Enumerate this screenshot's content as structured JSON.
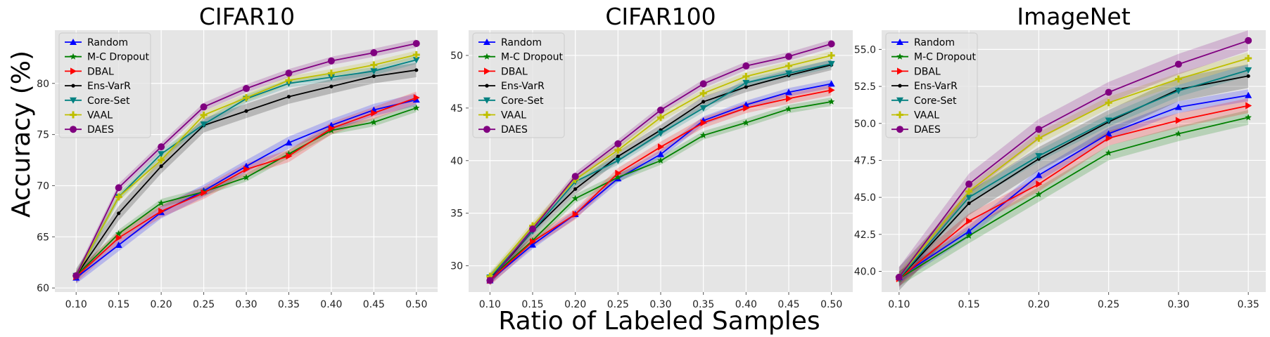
{
  "figure": {
    "ylabel": "Accuracy (%)",
    "xlabel": "Ratio of Labeled Samples"
  },
  "legend_entries": [
    {
      "name": "Random",
      "color": "#0000ff",
      "marker": "triangle-up"
    },
    {
      "name": "M-C Dropout",
      "color": "#008000",
      "marker": "star"
    },
    {
      "name": "DBAL",
      "color": "#ff0000",
      "marker": "triangle-right"
    },
    {
      "name": "Ens-VarR",
      "color": "#000000",
      "marker": "dot"
    },
    {
      "name": "Core-Set",
      "color": "#008080",
      "marker": "triangle-down"
    },
    {
      "name": "VAAL",
      "color": "#bfbf00",
      "marker": "plus"
    },
    {
      "name": "DAES",
      "color": "#800080",
      "marker": "circle"
    }
  ],
  "chart_data": [
    {
      "type": "line",
      "title": "CIFAR10",
      "x": [
        0.1,
        0.15,
        0.2,
        0.25,
        0.3,
        0.35,
        0.4,
        0.45,
        0.5
      ],
      "x_tick_labels": [
        "0.10",
        "0.15",
        "0.20",
        "0.25",
        "0.30",
        "0.35",
        "0.40",
        "0.45",
        "0.50"
      ],
      "xlim": [
        0.075,
        0.525
      ],
      "ylim": [
        59.6,
        85.2
      ],
      "y_ticks": [
        60,
        65,
        70,
        75,
        80
      ],
      "y_tick_labels": [
        "60",
        "65",
        "70",
        "75",
        "80"
      ],
      "grid": true,
      "legend_position": "top-left",
      "series": [
        {
          "name": "Random",
          "values": [
            61.0,
            64.2,
            67.4,
            69.5,
            71.9,
            74.2,
            75.9,
            77.4,
            78.4
          ],
          "band": 0.6
        },
        {
          "name": "M-C Dropout",
          "values": [
            61.2,
            65.3,
            68.3,
            69.4,
            70.8,
            73.1,
            75.4,
            76.2,
            77.6
          ],
          "band": 0.4
        },
        {
          "name": "DBAL",
          "values": [
            61.1,
            64.9,
            67.5,
            69.3,
            71.6,
            72.9,
            75.6,
            77.1,
            78.6
          ],
          "band": 0.6
        },
        {
          "name": "Ens-VarR",
          "values": [
            61.2,
            67.3,
            71.9,
            75.9,
            77.3,
            78.7,
            79.7,
            80.7,
            81.3
          ],
          "band": 0.7
        },
        {
          "name": "Core-Set",
          "values": [
            61.2,
            68.9,
            73.1,
            76.0,
            78.5,
            80.0,
            80.6,
            81.2,
            82.3
          ],
          "band": 0.4
        },
        {
          "name": "VAAL",
          "values": [
            61.2,
            68.9,
            72.5,
            76.9,
            78.6,
            80.3,
            81.0,
            81.8,
            82.8
          ],
          "band": 0.4
        },
        {
          "name": "DAES",
          "values": [
            61.2,
            69.8,
            73.8,
            77.7,
            79.5,
            81.0,
            82.2,
            83.0,
            83.9
          ],
          "band": 0.4
        }
      ]
    },
    {
      "type": "line",
      "title": "CIFAR100",
      "x": [
        0.1,
        0.15,
        0.2,
        0.25,
        0.3,
        0.35,
        0.4,
        0.45,
        0.5
      ],
      "x_tick_labels": [
        "0.10",
        "0.15",
        "0.20",
        "0.25",
        "0.30",
        "0.35",
        "0.40",
        "0.45",
        "0.50"
      ],
      "xlim": [
        0.075,
        0.525
      ],
      "ylim": [
        27.5,
        52.4
      ],
      "y_ticks": [
        30,
        35,
        40,
        45,
        50
      ],
      "y_tick_labels": [
        "30",
        "35",
        "40",
        "45",
        "50"
      ],
      "grid": true,
      "legend_position": "top-left",
      "series": [
        {
          "name": "Random",
          "values": [
            28.6,
            32.0,
            34.9,
            38.3,
            40.6,
            43.8,
            45.3,
            46.5,
            47.3
          ],
          "band": 0.4
        },
        {
          "name": "M-C Dropout",
          "values": [
            28.8,
            32.4,
            36.4,
            38.4,
            40.0,
            42.4,
            43.6,
            44.9,
            45.6
          ],
          "band": 0.4
        },
        {
          "name": "DBAL",
          "values": [
            28.6,
            32.3,
            34.9,
            38.8,
            41.3,
            43.6,
            45.0,
            45.9,
            46.7
          ],
          "band": 0.5
        },
        {
          "name": "Ens-VarR",
          "values": [
            28.7,
            33.3,
            37.3,
            40.4,
            42.9,
            45.6,
            47.0,
            48.1,
            49.1
          ],
          "band": 0.5
        },
        {
          "name": "Core-Set",
          "values": [
            28.9,
            33.3,
            38.0,
            40.0,
            42.6,
            45.0,
            47.4,
            48.3,
            49.2
          ],
          "band": 0.4
        },
        {
          "name": "VAAL",
          "values": [
            29.0,
            33.8,
            38.2,
            41.0,
            44.1,
            46.4,
            48.0,
            49.0,
            50.0
          ],
          "band": 0.4
        },
        {
          "name": "DAES",
          "values": [
            28.6,
            33.5,
            38.5,
            41.6,
            44.8,
            47.3,
            49.0,
            49.9,
            51.1
          ],
          "band": 0.4
        }
      ]
    },
    {
      "type": "line",
      "title": "ImageNet",
      "x": [
        0.1,
        0.15,
        0.2,
        0.25,
        0.3,
        0.35
      ],
      "x_tick_labels": [
        "0.10",
        "0.15",
        "0.20",
        "0.25",
        "0.30",
        "0.35"
      ],
      "xlim": [
        0.0875,
        0.3625
      ],
      "ylim": [
        38.6,
        56.3
      ],
      "y_ticks": [
        40.0,
        42.5,
        45.0,
        47.5,
        50.0,
        52.5,
        55.0
      ],
      "y_tick_labels": [
        "40.0",
        "42.5",
        "45.0",
        "47.5",
        "50.0",
        "52.5",
        "55.0"
      ],
      "grid": true,
      "legend_position": "top-left",
      "series": [
        {
          "name": "Random",
          "values": [
            39.6,
            42.7,
            46.5,
            49.3,
            51.1,
            51.9
          ],
          "band": 0.4
        },
        {
          "name": "M-C Dropout",
          "values": [
            39.5,
            42.4,
            45.2,
            48.0,
            49.3,
            50.4
          ],
          "band": 0.5
        },
        {
          "name": "DBAL",
          "values": [
            39.5,
            43.4,
            45.9,
            49.0,
            50.2,
            51.2
          ],
          "band": 0.5
        },
        {
          "name": "Ens-VarR",
          "values": [
            39.5,
            44.6,
            47.6,
            50.1,
            52.3,
            53.2
          ],
          "band": 0.8
        },
        {
          "name": "Core-Set",
          "values": [
            39.5,
            45.0,
            47.8,
            50.2,
            52.2,
            53.6
          ],
          "band": 0.4
        },
        {
          "name": "VAAL",
          "values": [
            39.6,
            45.4,
            49.0,
            51.4,
            53.0,
            54.4
          ],
          "band": 0.4
        },
        {
          "name": "DAES",
          "values": [
            39.6,
            45.9,
            49.6,
            52.1,
            54.0,
            55.6
          ],
          "band": 0.7
        }
      ]
    }
  ]
}
